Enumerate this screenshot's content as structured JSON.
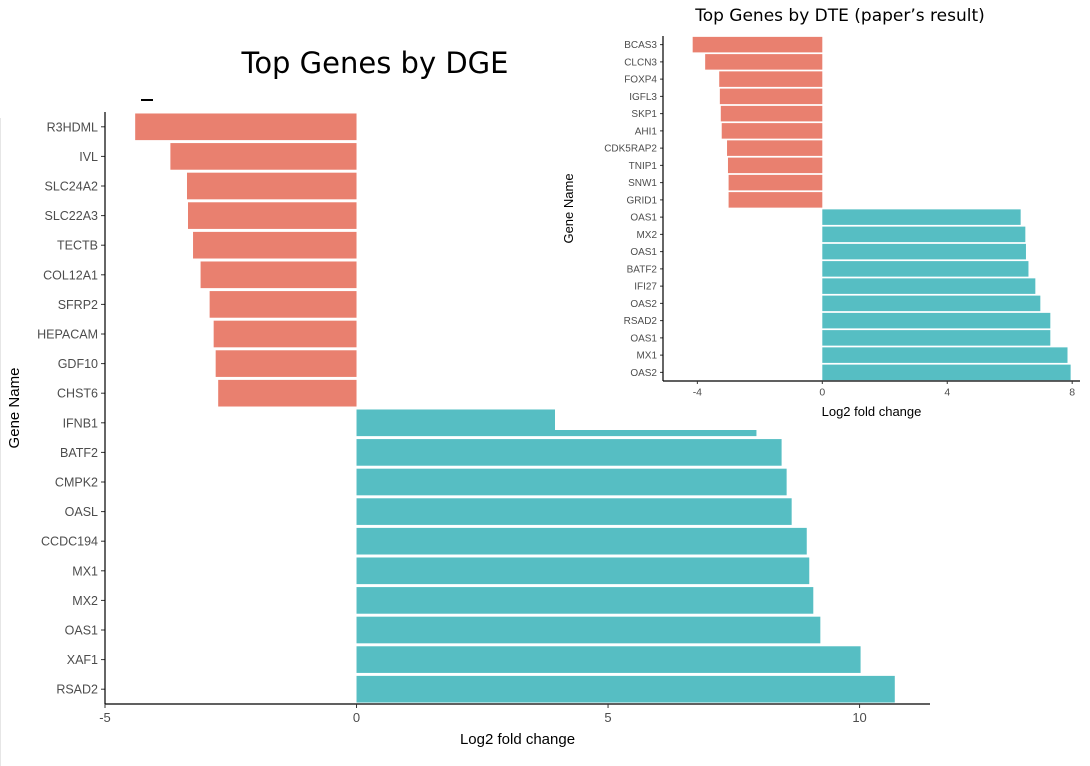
{
  "colors": {
    "negative": "#e9806f",
    "positive": "#56bec3",
    "axis": "#000000",
    "tick_text": "#4d4d4d"
  },
  "chart_data": [
    {
      "type": "bar",
      "orientation": "horizontal",
      "title": "Top Genes by DGE",
      "xlabel": "Log2 fold change",
      "ylabel": "Gene Name",
      "xlim": [
        -5,
        11.4
      ],
      "xticks": [
        -5,
        0,
        5,
        10
      ],
      "xtick_labels": [
        "-5",
        "0",
        "5",
        "10"
      ],
      "grid": false,
      "categories": [
        "R3HDML",
        "IVL",
        "SLC24A2",
        "SLC22A3",
        "TECTB",
        "COL12A1",
        "SFRP2",
        "HEPACAM",
        "GDF10",
        "CHST6",
        "IFNB1",
        "BATF2",
        "CMPK2",
        "OASL",
        "CCDC194",
        "MX1",
        "MX2",
        "OAS1",
        "XAF1",
        "RSAD2"
      ],
      "values": [
        -4.4,
        -3.7,
        -3.37,
        -3.35,
        -3.25,
        -3.1,
        -2.92,
        -2.84,
        -2.8,
        -2.75,
        7.95,
        8.45,
        8.55,
        8.65,
        8.95,
        9.0,
        9.08,
        9.22,
        10.02,
        10.7
      ]
    },
    {
      "type": "bar",
      "orientation": "horizontal",
      "title": "Top Genes by DTE (paper’s result)",
      "xlabel": "Log2 fold change",
      "ylabel": "Gene Name",
      "xlim": [
        -5.1,
        8.25
      ],
      "xticks": [
        -4,
        0,
        4,
        8
      ],
      "xtick_labels": [
        "-4",
        "0",
        "4",
        "8"
      ],
      "grid": false,
      "categories": [
        "BCAS3",
        "CLCN3",
        "FOXP4",
        "IGFL3",
        "SKP1",
        "AHI1",
        "CDK5RAP2",
        "TNIP1",
        "SNW1",
        "GRID1",
        "OAS1",
        "MX2",
        "OAS1",
        "BATF2",
        "IFI27",
        "OAS2",
        "RSAD2",
        "OAS1",
        "MX1",
        "OAS2"
      ],
      "values": [
        -4.15,
        -3.75,
        -3.3,
        -3.28,
        -3.25,
        -3.22,
        -3.05,
        -3.02,
        -3.0,
        -3.0,
        6.35,
        6.5,
        6.52,
        6.6,
        6.82,
        6.98,
        7.3,
        7.3,
        7.85,
        7.95
      ]
    }
  ]
}
